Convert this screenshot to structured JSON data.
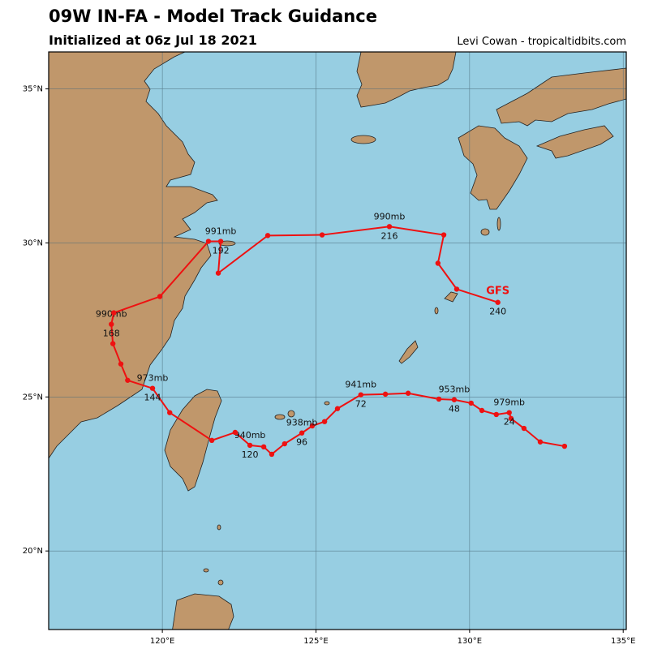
{
  "header": {
    "title": "09W IN-FA - Model Track Guidance",
    "subtitle": "Initialized at 06z Jul 18 2021",
    "credit": "Levi Cowan - tropicaltidbits.com"
  },
  "map": {
    "extent": {
      "lon": [
        116.3,
        135.1
      ],
      "lat": [
        17.45,
        36.2
      ]
    },
    "lat_ticks": [
      {
        "v": 35,
        "label": "35°N"
      },
      {
        "v": 30,
        "label": "30°N"
      },
      {
        "v": 25,
        "label": "25°N"
      },
      {
        "v": 20,
        "label": "20°N"
      }
    ],
    "lon_ticks": [
      {
        "v": 120,
        "label": "120°E"
      },
      {
        "v": 125,
        "label": "125°E"
      },
      {
        "v": 130,
        "label": "130°E"
      },
      {
        "v": 135,
        "label": "135°E"
      }
    ],
    "colors": {
      "ocean": "#97CEE2",
      "land": "#C0976B",
      "track": "#EE1111",
      "grid": "#4a6a7a"
    }
  },
  "model": {
    "name": "GFS",
    "color": "#EE1111"
  },
  "track": [
    {
      "h": 0,
      "lon": 133.09,
      "lat": 23.4
    },
    {
      "h": 6,
      "lon": 132.3,
      "lat": 23.54
    },
    {
      "h": 12,
      "lon": 131.77,
      "lat": 23.98
    },
    {
      "h": 18,
      "lon": 131.35,
      "lat": 24.3
    },
    {
      "h": 24,
      "lon": 131.29,
      "lat": 24.49,
      "label": "24",
      "mb": "979mb"
    },
    {
      "h": 30,
      "lon": 130.87,
      "lat": 24.43
    },
    {
      "h": 36,
      "lon": 130.4,
      "lat": 24.56
    },
    {
      "h": 42,
      "lon": 130.05,
      "lat": 24.8
    },
    {
      "h": 48,
      "lon": 129.5,
      "lat": 24.91,
      "label": "48",
      "mb": "953mb"
    },
    {
      "h": 54,
      "lon": 129.0,
      "lat": 24.93
    },
    {
      "h": 60,
      "lon": 128.0,
      "lat": 25.12
    },
    {
      "h": 66,
      "lon": 127.26,
      "lat": 25.09
    },
    {
      "h": 72,
      "lon": 126.46,
      "lat": 25.07,
      "label": "72",
      "mb": "941mb"
    },
    {
      "h": 78,
      "lon": 125.7,
      "lat": 24.62
    },
    {
      "h": 84,
      "lon": 125.28,
      "lat": 24.2
    },
    {
      "h": 90,
      "lon": 124.88,
      "lat": 24.06
    },
    {
      "h": 96,
      "lon": 124.54,
      "lat": 23.83,
      "label": "96",
      "mb": "938mb"
    },
    {
      "h": 102,
      "lon": 123.98,
      "lat": 23.48
    },
    {
      "h": 108,
      "lon": 123.56,
      "lat": 23.14
    },
    {
      "h": 114,
      "lon": 123.3,
      "lat": 23.38
    },
    {
      "h": 120,
      "lon": 122.85,
      "lat": 23.43,
      "label": "120",
      "mb": "940mb"
    },
    {
      "h": 126,
      "lon": 122.37,
      "lat": 23.85
    },
    {
      "h": 132,
      "lon": 121.61,
      "lat": 23.59
    },
    {
      "h": 138,
      "lon": 120.24,
      "lat": 24.49
    },
    {
      "h": 144,
      "lon": 119.68,
      "lat": 25.28,
      "label": "144",
      "mb": "973mb"
    },
    {
      "h": 150,
      "lon": 118.87,
      "lat": 25.54
    },
    {
      "h": 156,
      "lon": 118.65,
      "lat": 26.07
    },
    {
      "h": 162,
      "lon": 118.39,
      "lat": 26.73
    },
    {
      "h": 168,
      "lon": 118.34,
      "lat": 27.36,
      "label": "168",
      "mb": "990mb"
    },
    {
      "h": 174,
      "lon": 118.42,
      "lat": 27.73
    },
    {
      "h": 180,
      "lon": 119.92,
      "lat": 28.26
    },
    {
      "h": 186,
      "lon": 121.5,
      "lat": 30.05
    },
    {
      "h": 192,
      "lon": 121.9,
      "lat": 30.05,
      "label": "192",
      "mb": "991mb"
    },
    {
      "h": 198,
      "lon": 121.82,
      "lat": 29.02
    },
    {
      "h": 204,
      "lon": 123.43,
      "lat": 30.24
    },
    {
      "h": 210,
      "lon": 125.2,
      "lat": 30.26
    },
    {
      "h": 216,
      "lon": 127.39,
      "lat": 30.53,
      "label": "216",
      "mb": "990mb"
    },
    {
      "h": 222,
      "lon": 129.16,
      "lat": 30.26
    },
    {
      "h": 228,
      "lon": 128.97,
      "lat": 29.34
    },
    {
      "h": 234,
      "lon": 129.58,
      "lat": 28.5
    },
    {
      "h": 240,
      "lon": 130.92,
      "lat": 28.07,
      "label": "240"
    }
  ]
}
